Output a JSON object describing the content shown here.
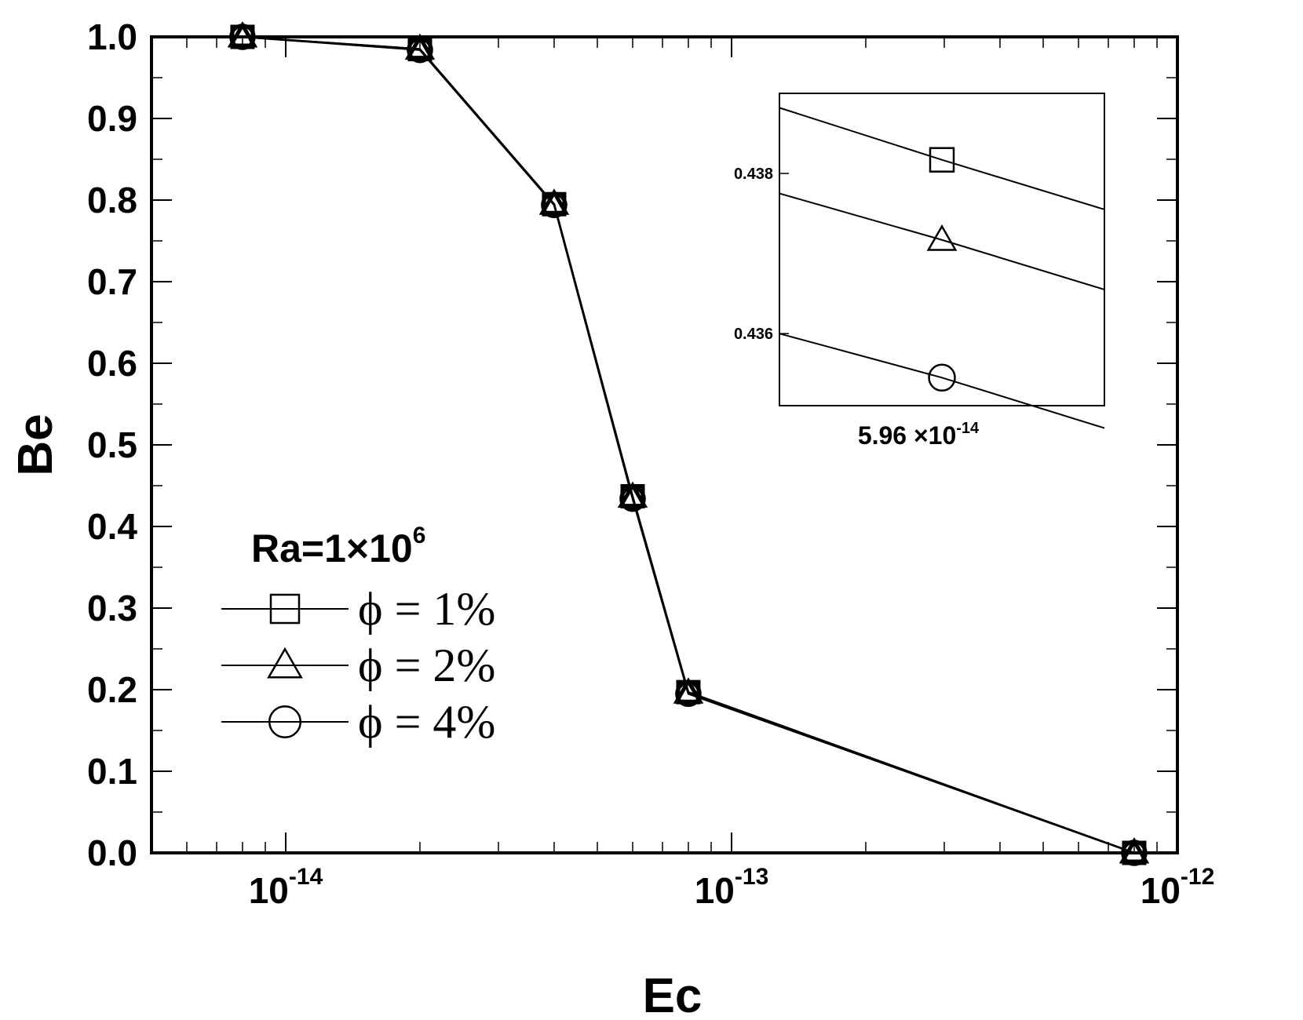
{
  "chart_data": [
    {
      "type": "line",
      "xlabel": "Ec",
      "ylabel": "Be",
      "xscale": "log",
      "xlim": [
        5e-15,
        1e-12
      ],
      "ylim": [
        0,
        1
      ],
      "x_ticks": [
        {
          "value": 1e-14,
          "base": "10",
          "exp": "-14"
        },
        {
          "value": 1e-13,
          "base": "10",
          "exp": "-13"
        },
        {
          "value": 1e-12,
          "base": "10",
          "exp": "-12"
        }
      ],
      "y_ticks": [
        "0.0",
        "0.1",
        "0.2",
        "0.3",
        "0.4",
        "0.5",
        "0.6",
        "0.7",
        "0.8",
        "0.9",
        "1.0"
      ],
      "x": [
        8e-15,
        2e-14,
        4e-14,
        6e-14,
        8e-14,
        8e-13
      ],
      "series": [
        {
          "name": "ϕ = 1%",
          "marker": "square",
          "values": [
            1.0,
            0.985,
            0.795,
            0.437,
            0.197,
            0.0
          ]
        },
        {
          "name": "ϕ = 2%",
          "marker": "triangle",
          "values": [
            1.0,
            0.985,
            0.795,
            0.436,
            0.196,
            0.0
          ]
        },
        {
          "name": "ϕ = 4%",
          "marker": "circle",
          "values": [
            1.0,
            0.984,
            0.794,
            0.434,
            0.195,
            0.0
          ]
        }
      ],
      "legend": {
        "title_prefix": "Ra=1×10",
        "title_exp": "6",
        "placement": "lower-left"
      },
      "grid": false
    },
    {
      "type": "line",
      "role": "inset",
      "placement": "top-right",
      "xlabel_mantissa": "5.96 ×10",
      "xlabel_exp": "-14",
      "xlim": [
        5.93,
        5.99
      ],
      "ylim": [
        0.4351,
        0.439
      ],
      "y_ticks": [
        "0.436",
        "0.438"
      ],
      "marker_x": 5.96,
      "series": [
        {
          "name": "ϕ = 1%",
          "marker": "square",
          "values": [
            0.43882,
            0.43817,
            0.43755
          ]
        },
        {
          "name": "ϕ = 2%",
          "marker": "triangle",
          "values": [
            0.43775,
            0.43717,
            0.43655
          ]
        },
        {
          "name": "ϕ = 4%",
          "marker": "circle",
          "values": [
            0.436,
            0.43545,
            0.43482
          ]
        }
      ],
      "x": [
        5.93,
        5.96,
        5.99
      ]
    }
  ]
}
